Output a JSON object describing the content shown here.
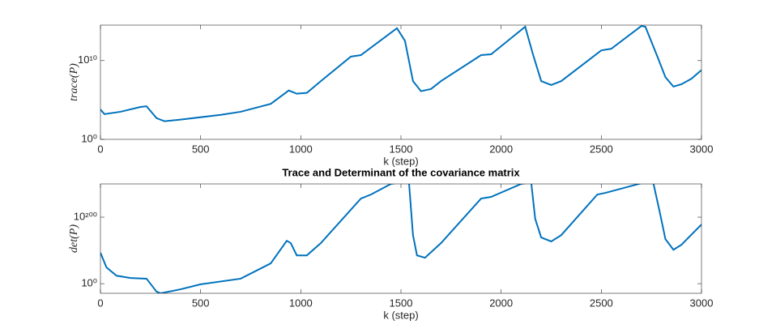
{
  "chart_data": [
    {
      "type": "line",
      "x_label": "k (step)",
      "y_label": "trace(P)",
      "log_y": true,
      "grid": false,
      "xlim": [
        0,
        3000
      ],
      "xticks": [
        0,
        500,
        1000,
        1500,
        2000,
        2500,
        3000
      ],
      "ylim": [
        1,
        320000000000000.0
      ],
      "yticks": [
        {
          "value": 1,
          "label": "10⁰"
        },
        {
          "value": 10000000000.0,
          "label": "10¹⁰"
        }
      ],
      "x": [
        0,
        20,
        100,
        200,
        230,
        280,
        320,
        400,
        600,
        700,
        850,
        940,
        980,
        1030,
        1100,
        1250,
        1300,
        1480,
        1520,
        1560,
        1600,
        1650,
        1700,
        1900,
        1950,
        2120,
        2160,
        2200,
        2250,
        2300,
        2500,
        2550,
        2700,
        2720,
        2780,
        2820,
        2860,
        2900,
        2950,
        3000
      ],
      "series": [
        {
          "color": "#0072bd",
          "values": [
            6300.0,
            1600.0,
            3200.0,
            13000.0,
            16000.0,
            500.0,
            200.0,
            320.0,
            1300.0,
            3200.0,
            32000.0,
            1600000.0,
            630000.0,
            790000.0,
            25000000.0,
            32000000000.0,
            50000000000.0,
            130000000000000.0,
            3200000000000.0,
            25000000.0,
            1300000.0,
            2500000.0,
            25000000.0,
            50000000000.0,
            63000000000.0,
            200000000000000.0,
            50000000000.0,
            25000000.0,
            7900000.0,
            25000000.0,
            200000000000.0,
            320000000000.0,
            250000000000000.0,
            200000000000000.0,
            32000000000.0,
            79000000.0,
            5000000.0,
            10000000.0,
            50000000.0,
            630000000.0
          ]
        }
      ]
    },
    {
      "type": "line",
      "title": "Trace and Determinant of the covariance matrix",
      "x_label": "k (step)",
      "y_label": "det(P)",
      "log_y": true,
      "grid": false,
      "xlim": [
        0,
        3000
      ],
      "xticks": [
        0,
        500,
        1000,
        1500,
        2000,
        2500,
        3000
      ],
      "ylim": [
        1e-29,
        1e+300
      ],
      "yticks": [
        {
          "value": 1,
          "label": "10⁰"
        },
        {
          "value": 1e+200,
          "label": "10²⁰⁰"
        }
      ],
      "x": [
        0,
        30,
        80,
        150,
        230,
        280,
        300,
        400,
        500,
        700,
        850,
        930,
        950,
        980,
        1030,
        1100,
        1300,
        1350,
        1450,
        1500,
        1540,
        1560,
        1580,
        1620,
        1700,
        1900,
        1950,
        2100,
        2150,
        2170,
        2200,
        2250,
        2300,
        2480,
        2520,
        2700,
        2760,
        2790,
        2820,
        2860,
        2900,
        3000
      ],
      "series": [
        {
          "color": "#0072bd",
          "values": [
            1e+93,
            1e+49,
            1e+24,
            1e+17,
            1000000000000000.0,
            1e-24,
            1e-29,
            1e-17,
            0.01,
            1000000000000000.0,
            1e+61,
            1e+129,
            1e+122,
            1e+85,
            1e+85,
            1e+122,
            1e+256,
            1e+268,
            1e+300,
            1e+305,
            1e+305,
            1e+146,
            1e+85,
            1e+78,
            1e+122,
            1e+256,
            1e+261,
            1e+300,
            1e+305,
            1e+195,
            1e+139,
            1e+127,
            1e+146,
            1e+268,
            1e+273,
            1e+302,
            1e+302,
            1e+220,
            1e+134,
            1e+102,
            1e+117,
            1e+178
          ]
        }
      ]
    }
  ]
}
